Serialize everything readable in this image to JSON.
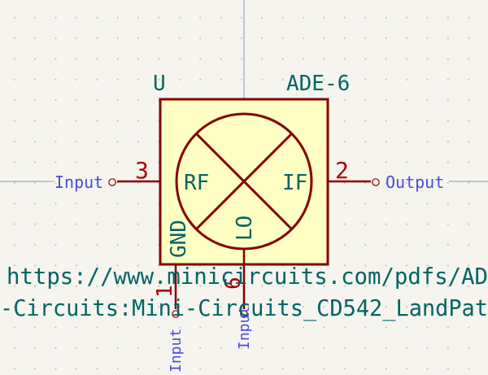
{
  "component": {
    "reference": "U",
    "value": "ADE-6",
    "datasheet": "https://www.minicircuits.com/pdfs/AD",
    "footprint": "-Circuits:Mini-Circuits_CD542_LandPat",
    "pins": {
      "rf": {
        "number": "3",
        "name": "RF"
      },
      "if": {
        "number": "2",
        "name": "IF"
      },
      "lo": {
        "number": "6",
        "name": "LO"
      },
      "gnd": {
        "number": "1",
        "name": "GND"
      }
    }
  },
  "labels": {
    "rf_label": "Input",
    "if_label": "Output",
    "gnd_label": "Input",
    "lo_label": "Input"
  },
  "colors": {
    "background": "#f5f4ef",
    "body_fill": "#ffffc4",
    "body_outline": "#840000",
    "pin_number": "#a90000",
    "field_text": "#006464",
    "net_label": "#4b4bd8",
    "wire_blue": "#8f91d2",
    "grid_dot": "#c9c7bf"
  }
}
